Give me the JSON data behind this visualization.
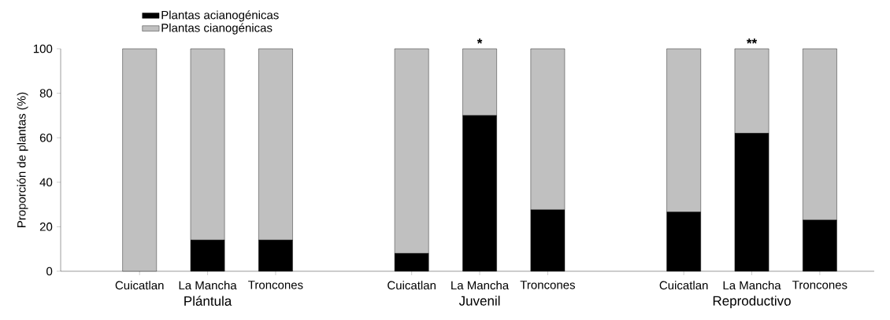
{
  "chart_data": {
    "type": "bar",
    "stacked": true,
    "ylabel": "Proporción de plantas (%)",
    "categories": [
      "Cuicatlan",
      "La Mancha",
      "Troncones",
      null,
      "Cuicatlan",
      "La Mancha",
      "Troncones",
      null,
      "Cuicatlan",
      "La Mancha",
      "Troncones"
    ],
    "series": [
      {
        "name": "Plantas acianogénicas",
        "color": "#000000",
        "values": [
          0,
          14,
          14,
          null,
          8,
          70,
          27.6,
          null,
          26.6,
          62,
          23
        ]
      },
      {
        "name": "Plantas cianogénicas",
        "color": "#c0c0c0",
        "values": [
          100,
          86,
          86,
          null,
          92,
          30,
          72.4,
          null,
          73.4,
          38,
          77
        ],
        "value_labels": [
          null,
          null,
          null,
          null,
          null,
          "*",
          null,
          null,
          null,
          "**",
          null
        ]
      }
    ],
    "annotations": [
      "Plántula",
      "Juvenil",
      "Reproductivo"
    ],
    "ylim": [
      0,
      100
    ],
    "yticks": [
      0,
      20,
      40,
      60,
      80,
      100
    ],
    "legend": "top left",
    "grid": false
  }
}
